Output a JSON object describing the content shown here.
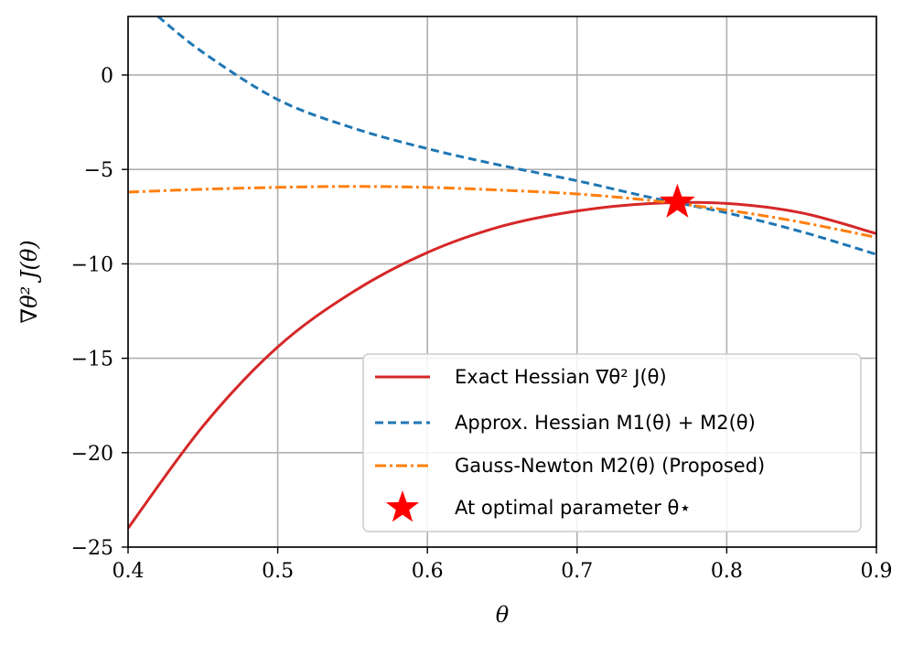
{
  "chart_data": {
    "type": "line",
    "title": "",
    "xlabel": "θ",
    "ylabel": "∇θ² J(θ)",
    "xlim": [
      0.4,
      0.9
    ],
    "ylim": [
      -25,
      3.1
    ],
    "xticks": [
      0.4,
      0.5,
      0.6,
      0.7,
      0.8,
      0.9
    ],
    "xtick_labels": [
      "0.4",
      "0.5",
      "0.6",
      "0.7",
      "0.8",
      "0.9"
    ],
    "yticks": [
      0,
      -5,
      -10,
      -15,
      -20,
      -25
    ],
    "ytick_labels": [
      "0",
      "−5",
      "−10",
      "−15",
      "−20",
      "−25"
    ],
    "grid": true,
    "legend_position": "lower-right",
    "series": [
      {
        "name": "Exact Hessian ∇θ² J(θ)",
        "color": "#d62728",
        "dash": "solid",
        "x": [
          0.4,
          0.45,
          0.5,
          0.55,
          0.6,
          0.65,
          0.7,
          0.75,
          0.8,
          0.85,
          0.9
        ],
        "y": [
          -24.0,
          -18.6,
          -14.4,
          -11.5,
          -9.4,
          -8.0,
          -7.2,
          -6.8,
          -6.8,
          -7.3,
          -8.4
        ]
      },
      {
        "name": "Approx. Hessian M1(θ) + M2(θ)",
        "color": "#1f77b4",
        "dash": "dashed",
        "x": [
          0.42,
          0.45,
          0.5,
          0.55,
          0.6,
          0.65,
          0.7,
          0.75,
          0.8,
          0.85,
          0.9
        ],
        "y": [
          3.1,
          1.2,
          -1.3,
          -2.8,
          -3.9,
          -4.8,
          -5.6,
          -6.5,
          -7.3,
          -8.3,
          -9.5
        ]
      },
      {
        "name": "Gauss-Newton M2(θ) (Proposed)",
        "color": "#ff7f0e",
        "dash": "dashdot",
        "x": [
          0.4,
          0.45,
          0.5,
          0.55,
          0.6,
          0.65,
          0.7,
          0.75,
          0.8,
          0.85,
          0.9
        ],
        "y": [
          -6.2,
          -6.05,
          -5.95,
          -5.9,
          -5.95,
          -6.1,
          -6.3,
          -6.65,
          -7.15,
          -7.8,
          -8.6
        ]
      }
    ],
    "marker": {
      "name": "At optimal parameter θ⋆",
      "color": "#ff0000",
      "shape": "star",
      "x": 0.767,
      "y": -6.75
    }
  },
  "legend": [
    {
      "label": "Exact Hessian ∇θ² J(θ)"
    },
    {
      "label": "Approx. Hessian M1(θ) + M2(θ)"
    },
    {
      "label": "Gauss-Newton M2(θ) (Proposed)"
    },
    {
      "label": "At optimal parameter θ⋆"
    }
  ]
}
